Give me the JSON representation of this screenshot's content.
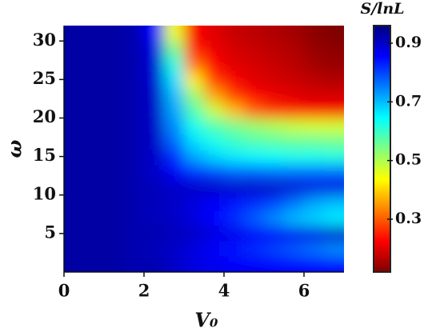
{
  "chart_data": {
    "type": "heatmap",
    "xlabel": "V₀",
    "ylabel": "ω",
    "colorbar_label": "S/lnL",
    "colormap": "jet_r",
    "xlim": [
      0,
      7
    ],
    "ylim": [
      0,
      32
    ],
    "xticks": [
      0,
      2,
      4,
      6
    ],
    "yticks": [
      5,
      10,
      15,
      20,
      25,
      30
    ],
    "zlim": [
      0.12,
      0.96
    ],
    "zticks": [
      0.3,
      0.5,
      0.7,
      0.9
    ],
    "x": [
      0.25,
      0.75,
      1.25,
      1.75,
      2.25,
      2.75,
      3.25,
      3.75,
      4.25,
      4.75,
      5.25,
      5.75,
      6.25,
      6.75
    ],
    "y": [
      1,
      3,
      5,
      7,
      9,
      11,
      13,
      15,
      17,
      19,
      21,
      23,
      25,
      27,
      29,
      31
    ],
    "z": [
      [
        0.93,
        0.93,
        0.93,
        0.92,
        0.92,
        0.9,
        0.88,
        0.87,
        0.86,
        0.86,
        0.85,
        0.85,
        0.85,
        0.85
      ],
      [
        0.93,
        0.93,
        0.93,
        0.92,
        0.91,
        0.9,
        0.88,
        0.86,
        0.84,
        0.82,
        0.8,
        0.78,
        0.76,
        0.74
      ],
      [
        0.93,
        0.93,
        0.93,
        0.92,
        0.92,
        0.91,
        0.9,
        0.88,
        0.87,
        0.86,
        0.86,
        0.87,
        0.88,
        0.9
      ],
      [
        0.93,
        0.93,
        0.93,
        0.92,
        0.91,
        0.9,
        0.88,
        0.85,
        0.82,
        0.78,
        0.74,
        0.7,
        0.68,
        0.66
      ],
      [
        0.93,
        0.93,
        0.93,
        0.92,
        0.91,
        0.9,
        0.88,
        0.86,
        0.84,
        0.82,
        0.8,
        0.76,
        0.72,
        0.7
      ],
      [
        0.93,
        0.93,
        0.93,
        0.92,
        0.91,
        0.9,
        0.9,
        0.9,
        0.9,
        0.9,
        0.9,
        0.89,
        0.88,
        0.88
      ],
      [
        0.93,
        0.93,
        0.93,
        0.92,
        0.9,
        0.86,
        0.82,
        0.8,
        0.78,
        0.78,
        0.77,
        0.77,
        0.77,
        0.77
      ],
      [
        0.93,
        0.93,
        0.93,
        0.92,
        0.9,
        0.82,
        0.72,
        0.68,
        0.66,
        0.65,
        0.64,
        0.63,
        0.63,
        0.62
      ],
      [
        0.93,
        0.93,
        0.93,
        0.92,
        0.9,
        0.77,
        0.67,
        0.63,
        0.6,
        0.58,
        0.57,
        0.56,
        0.56,
        0.55
      ],
      [
        0.93,
        0.93,
        0.93,
        0.92,
        0.9,
        0.74,
        0.63,
        0.58,
        0.55,
        0.52,
        0.5,
        0.48,
        0.47,
        0.47
      ],
      [
        0.93,
        0.93,
        0.93,
        0.92,
        0.9,
        0.72,
        0.58,
        0.48,
        0.38,
        0.3,
        0.26,
        0.24,
        0.23,
        0.22
      ],
      [
        0.93,
        0.93,
        0.93,
        0.92,
        0.9,
        0.7,
        0.52,
        0.36,
        0.27,
        0.23,
        0.21,
        0.2,
        0.19,
        0.19
      ],
      [
        0.93,
        0.93,
        0.93,
        0.92,
        0.89,
        0.67,
        0.42,
        0.27,
        0.22,
        0.2,
        0.19,
        0.18,
        0.17,
        0.16
      ],
      [
        0.93,
        0.93,
        0.93,
        0.92,
        0.89,
        0.62,
        0.32,
        0.23,
        0.2,
        0.19,
        0.18,
        0.17,
        0.15,
        0.14
      ],
      [
        0.93,
        0.93,
        0.93,
        0.92,
        0.88,
        0.55,
        0.25,
        0.21,
        0.19,
        0.18,
        0.17,
        0.16,
        0.14,
        0.13
      ],
      [
        0.93,
        0.93,
        0.93,
        0.92,
        0.85,
        0.45,
        0.22,
        0.2,
        0.18,
        0.17,
        0.16,
        0.15,
        0.13,
        0.12
      ]
    ]
  }
}
